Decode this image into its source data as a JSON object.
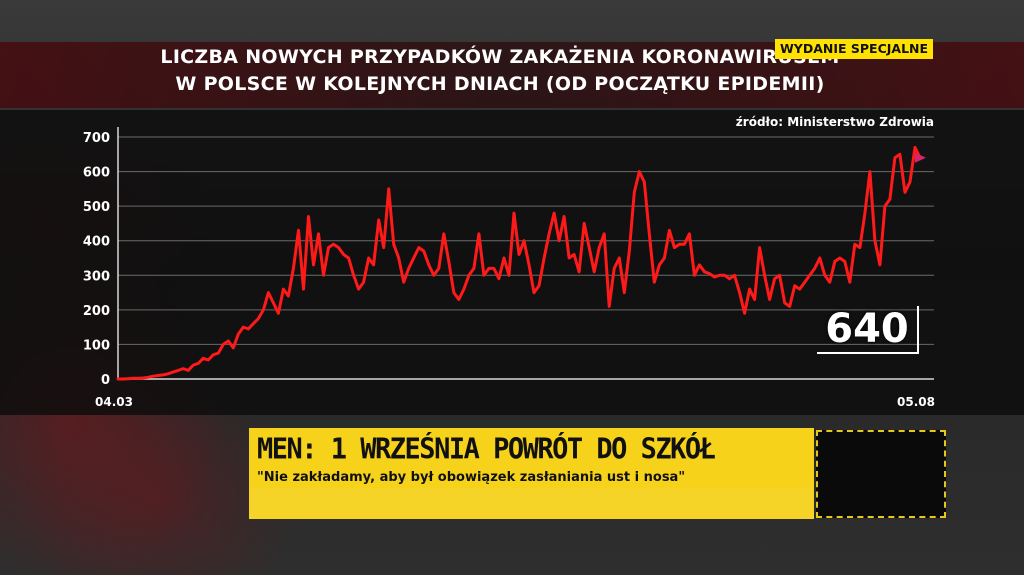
{
  "title": "LICZBA NOWYCH PRZYPADKÓW ZAKAŻENIA KORONAWIRUSEM\nW POLSCE W KOLEJNYCH DNIACH (OD POCZĄTKU EPIDEMII)",
  "badge": "WYDANIE SPECJALNE",
  "source": "źródło: Ministerstwo Zdrowia",
  "latest_value": "640",
  "lower_third": {
    "headline": "MEN: 1 WRZEŚNIA POWRÓT DO SZKÓŁ",
    "subtitle": "\"Nie zakładamy, aby był obowiązek zasłaniania ust i nosa\""
  },
  "colors": {
    "line": "#ff1a1a",
    "badge": "#ffe200",
    "lower_third": "#f6d21a"
  },
  "chart_data": {
    "type": "line",
    "title": "LICZBA NOWYCH PRZYPADKÓW ZAKAŻENIA KORONAWIRUSEM W POLSCE W KOLEJNYCH DNIACH (OD POCZĄTKU EPIDEMII)",
    "xlabel": "",
    "ylabel": "",
    "x_tick_labels": [
      "04.03",
      "05.08"
    ],
    "x_range": [
      0,
      154
    ],
    "yticks": [
      0,
      100,
      200,
      300,
      400,
      500,
      600,
      700
    ],
    "ylim": [
      0,
      720
    ],
    "grid": true,
    "series": [
      {
        "values": [
          0,
          0,
          1,
          2,
          2,
          3,
          5,
          8,
          10,
          12,
          15,
          20,
          25,
          30,
          25,
          40,
          45,
          60,
          55,
          70,
          75,
          100,
          110,
          90,
          130,
          150,
          145,
          160,
          175,
          200,
          250,
          220,
          190,
          260,
          240,
          320,
          430,
          260,
          470,
          330,
          420,
          300,
          380,
          390,
          380,
          360,
          350,
          300,
          260,
          280,
          350,
          330,
          460,
          380,
          550,
          390,
          350,
          280,
          320,
          350,
          380,
          370,
          330,
          300,
          320,
          420,
          340,
          250,
          230,
          260,
          300,
          320,
          420,
          300,
          320,
          320,
          290,
          350,
          300,
          480,
          360,
          400,
          330,
          250,
          270,
          350,
          420,
          480,
          400,
          470,
          350,
          360,
          310,
          450,
          380,
          310,
          380,
          420,
          210,
          320,
          350,
          250,
          370,
          540,
          600,
          570,
          420,
          280,
          330,
          350,
          430,
          380,
          390,
          390,
          420,
          300,
          330,
          310,
          305,
          295,
          300,
          300,
          290,
          300,
          250,
          190,
          260,
          230,
          380,
          300,
          230,
          290,
          300,
          220,
          210,
          270,
          260,
          280,
          300,
          320,
          350,
          300,
          280,
          340,
          350,
          340,
          280,
          390,
          380,
          480,
          600,
          400,
          330,
          500,
          520,
          640,
          650,
          540,
          570,
          670,
          640
        ]
      }
    ]
  }
}
